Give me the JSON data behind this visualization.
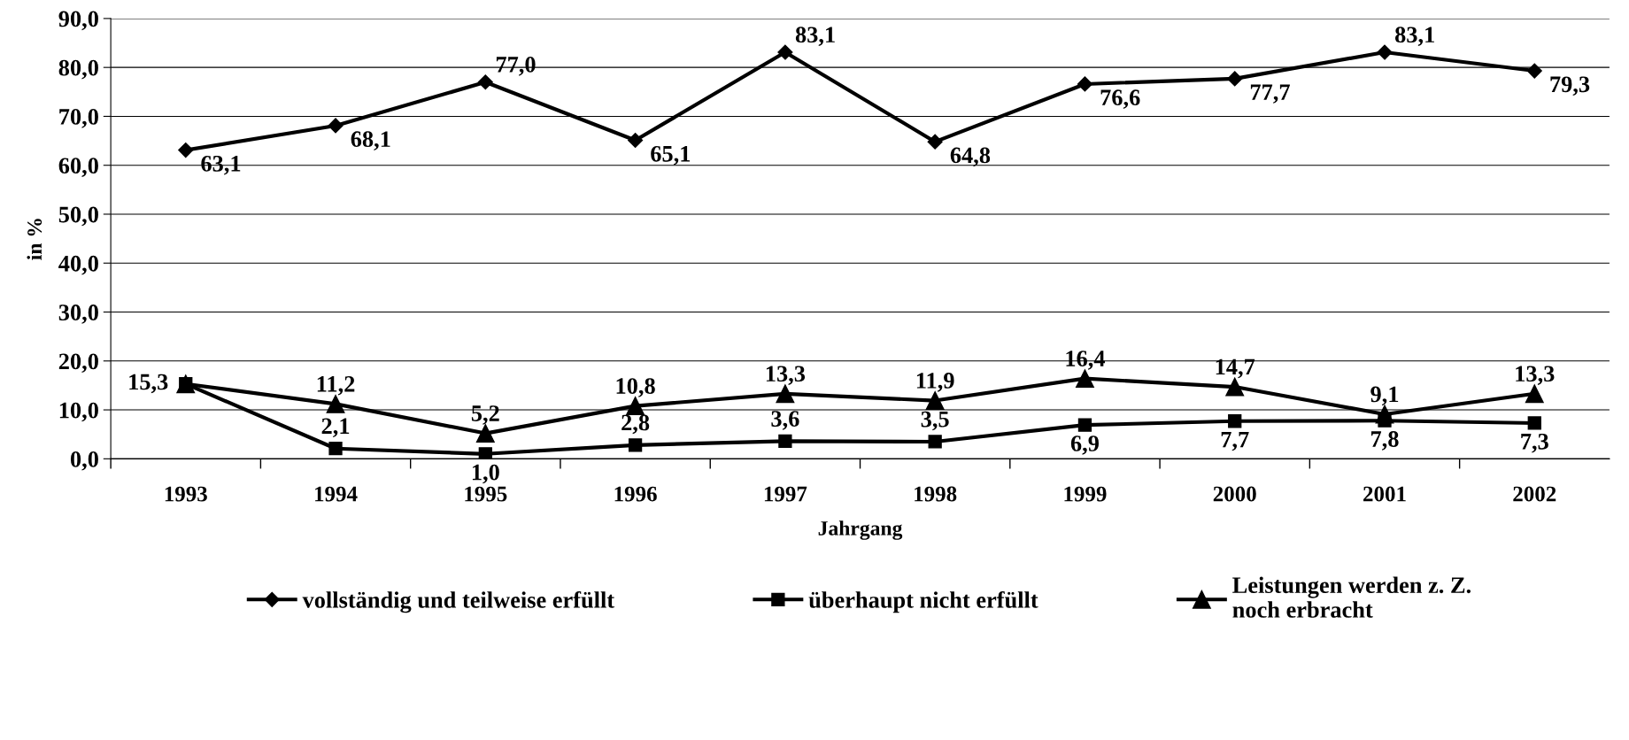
{
  "chart_data": {
    "type": "line",
    "xlabel": "Jahrgang",
    "ylabel": "in %",
    "categories": [
      "1993",
      "1994",
      "1995",
      "1996",
      "1997",
      "1998",
      "1999",
      "2000",
      "2001",
      "2002"
    ],
    "series": [
      {
        "name": "vollständig und teilweise erfüllt",
        "color": "#000000",
        "marker": "diamond",
        "values": [
          63.1,
          68.1,
          77.0,
          65.1,
          83.1,
          64.8,
          76.6,
          77.7,
          83.1,
          79.3
        ],
        "value_labels": [
          "63,1",
          "68,1",
          "77,0",
          "65,1",
          "83,1",
          "64,8",
          "76,6",
          "77,7",
          "83,1",
          "79,3"
        ]
      },
      {
        "name": "überhaupt nicht erfüllt",
        "color": "#000000",
        "marker": "square",
        "values": [
          15.3,
          2.1,
          1.0,
          2.8,
          3.6,
          3.5,
          6.9,
          7.7,
          7.8,
          7.3
        ],
        "value_labels": [
          "15,3",
          "2,1",
          "1,0",
          "2,8",
          "3,6",
          "3,5",
          "6,9",
          "7,7",
          "7,8",
          "7,3"
        ]
      },
      {
        "name": "Leistungen werden z. Z.\nnoch erbracht",
        "color": "#000000",
        "marker": "triangle",
        "values": [
          15.3,
          11.2,
          5.2,
          10.8,
          13.3,
          11.9,
          16.4,
          14.7,
          9.1,
          13.3
        ],
        "value_labels": [
          null,
          "11,2",
          "5,2",
          "10,8",
          "13,3",
          "11,9",
          "16,4",
          "14,7",
          "9,1",
          "13,3"
        ]
      }
    ],
    "ylim": [
      0,
      90
    ],
    "yticks": [
      {
        "value": 0,
        "label": "0,0"
      },
      {
        "value": 10,
        "label": "10,0"
      },
      {
        "value": 20,
        "label": "20,0"
      },
      {
        "value": 30,
        "label": "30,0"
      },
      {
        "value": 40,
        "label": "40,0"
      },
      {
        "value": 50,
        "label": "50,0"
      },
      {
        "value": 60,
        "label": "60,0"
      },
      {
        "value": 70,
        "label": "70,0"
      },
      {
        "value": 80,
        "label": "80,0"
      },
      {
        "value": 90,
        "label": "90,0"
      }
    ],
    "grid": "y",
    "legend": "bottom",
    "line_style": "solid"
  }
}
